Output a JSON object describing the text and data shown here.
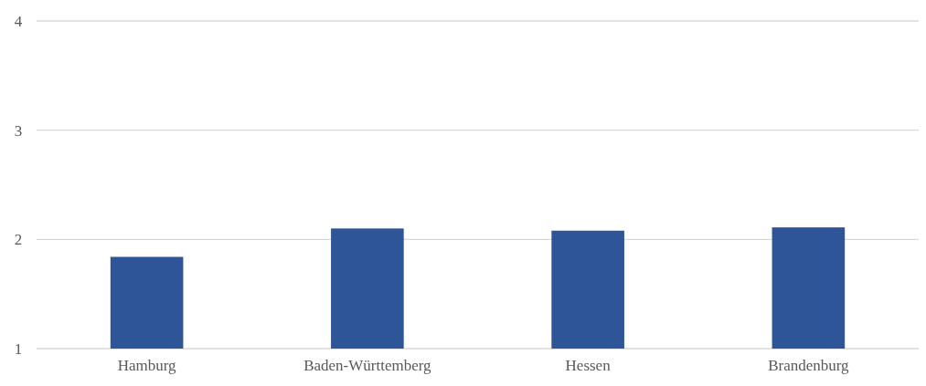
{
  "chart_data": {
    "type": "bar",
    "categories": [
      "Hamburg",
      "Baden-Württemberg",
      "Hessen",
      "Brandenburg"
    ],
    "values": [
      1.84,
      2.1,
      2.08,
      2.11
    ],
    "color": "#2e5597",
    "ylim": [
      1,
      4
    ],
    "yticks": [
      1,
      2,
      3,
      4
    ],
    "grid": "y"
  }
}
